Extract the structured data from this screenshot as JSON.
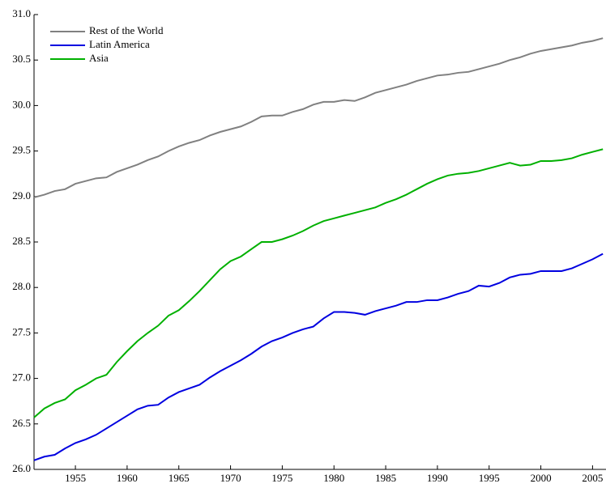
{
  "chart_data": {
    "type": "line",
    "x": [
      1951,
      1952,
      1953,
      1954,
      1955,
      1956,
      1957,
      1958,
      1959,
      1960,
      1961,
      1962,
      1963,
      1964,
      1965,
      1966,
      1967,
      1968,
      1969,
      1970,
      1971,
      1972,
      1973,
      1974,
      1975,
      1976,
      1977,
      1978,
      1979,
      1980,
      1981,
      1982,
      1983,
      1984,
      1985,
      1986,
      1987,
      1988,
      1989,
      1990,
      1991,
      1992,
      1993,
      1994,
      1995,
      1996,
      1997,
      1998,
      1999,
      2000,
      2001,
      2002,
      2003,
      2004,
      2005,
      2006
    ],
    "series": [
      {
        "name": "Rest of the World",
        "color": "#808080",
        "values": [
          28.99,
          29.02,
          29.06,
          29.08,
          29.14,
          29.17,
          29.2,
          29.21,
          29.27,
          29.31,
          29.35,
          29.4,
          29.44,
          29.5,
          29.55,
          29.59,
          29.62,
          29.67,
          29.71,
          29.74,
          29.77,
          29.82,
          29.88,
          29.89,
          29.89,
          29.93,
          29.96,
          30.01,
          30.04,
          30.04,
          30.06,
          30.05,
          30.09,
          30.14,
          30.17,
          30.2,
          30.23,
          30.27,
          30.3,
          30.33,
          30.34,
          30.36,
          30.37,
          30.4,
          30.43,
          30.46,
          30.5,
          30.53,
          30.57,
          30.6,
          30.62,
          30.64,
          30.66,
          30.69,
          30.71,
          30.74
        ]
      },
      {
        "name": "Latin America",
        "color": "#0000e0",
        "values": [
          26.1,
          26.14,
          26.16,
          26.23,
          26.29,
          26.33,
          26.38,
          26.45,
          26.52,
          26.59,
          26.66,
          26.7,
          26.71,
          26.79,
          26.85,
          26.89,
          26.93,
          27.01,
          27.08,
          27.14,
          27.2,
          27.27,
          27.35,
          27.41,
          27.45,
          27.5,
          27.54,
          27.57,
          27.66,
          27.73,
          27.73,
          27.72,
          27.7,
          27.74,
          27.77,
          27.8,
          27.84,
          27.84,
          27.86,
          27.86,
          27.89,
          27.93,
          27.96,
          28.02,
          28.01,
          28.05,
          28.11,
          28.14,
          28.15,
          28.18,
          28.18,
          28.18,
          28.21,
          28.26,
          28.31,
          28.37
        ]
      },
      {
        "name": "Asia",
        "color": "#00b000",
        "values": [
          26.57,
          26.67,
          26.73,
          26.77,
          26.87,
          26.93,
          27.0,
          27.04,
          27.18,
          27.3,
          27.41,
          27.5,
          27.58,
          27.69,
          27.75,
          27.85,
          27.96,
          28.08,
          28.2,
          28.29,
          28.34,
          28.42,
          28.5,
          28.5,
          28.53,
          28.57,
          28.62,
          28.68,
          28.73,
          28.76,
          28.79,
          28.82,
          28.85,
          28.88,
          28.93,
          28.97,
          29.02,
          29.08,
          29.14,
          29.19,
          29.23,
          29.25,
          29.26,
          29.28,
          29.31,
          29.34,
          29.37,
          29.34,
          29.35,
          29.39,
          29.39,
          29.4,
          29.42,
          29.46,
          29.49,
          29.52
        ]
      }
    ],
    "xlim": [
      1951,
      2006.3
    ],
    "xticks": [
      1955,
      1960,
      1965,
      1970,
      1975,
      1980,
      1985,
      1990,
      1995,
      2000,
      2005
    ],
    "ylim": [
      26,
      31
    ],
    "yticks": [
      {
        "value": 26,
        "label": "26.0"
      },
      26.5,
      {
        "value": 27,
        "label": "27.0"
      },
      27.5,
      {
        "value": 28,
        "label": "28.0"
      },
      28.5,
      {
        "value": 29,
        "label": "29.0"
      },
      29.5,
      {
        "value": 30,
        "label": "30.0"
      },
      30.5,
      {
        "value": 31,
        "label": "31.0"
      }
    ],
    "legend": "upper-left"
  }
}
